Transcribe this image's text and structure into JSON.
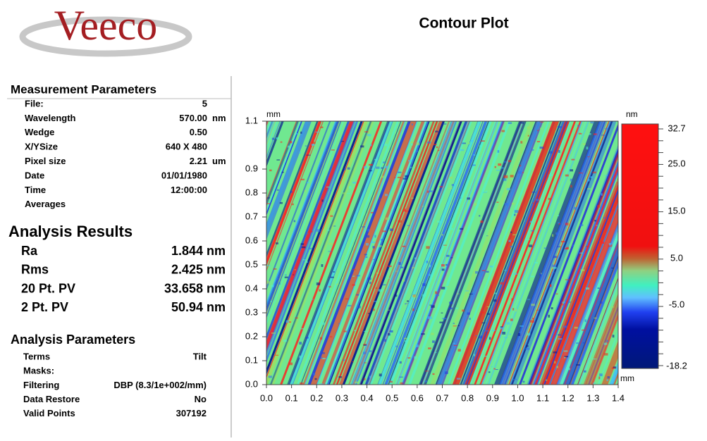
{
  "logo": "Veeco",
  "title": "Contour Plot",
  "measurement_parameters": {
    "title": "Measurement Parameters",
    "rows": [
      [
        "File:",
        "5",
        ""
      ],
      [
        "Wavelength",
        "570.00",
        "nm"
      ],
      [
        "Wedge",
        "0.50",
        ""
      ],
      [
        "X/YSize",
        "640 X 480",
        ""
      ],
      [
        "Pixel size",
        "2.21",
        "um"
      ],
      [
        "Date",
        "01/01/1980",
        ""
      ],
      [
        "Time",
        "12:00:00",
        ""
      ],
      [
        "Averages",
        "",
        ""
      ]
    ]
  },
  "analysis_results": {
    "title": "Analysis Results",
    "rows": [
      [
        "Ra",
        "1.844 nm"
      ],
      [
        "Rms",
        "2.425 nm"
      ],
      [
        "20 Pt. PV",
        "33.658 nm"
      ],
      [
        "2 Pt. PV",
        "50.94 nm"
      ]
    ]
  },
  "analysis_parameters": {
    "title": "Analysis Parameters",
    "rows": [
      [
        "Terms",
        "Tilt"
      ],
      [
        "Masks:",
        ""
      ],
      [
        "Filtering",
        "DBP (8.3/1e+002/mm)"
      ],
      [
        "Data Restore",
        "No"
      ],
      [
        "Valid Points",
        "307192"
      ]
    ]
  },
  "plot": {
    "x_unit": "mm",
    "y_unit": "mm",
    "colorbar_unit": "nm",
    "xticks": [
      "0.0",
      "0.1",
      "0.2",
      "0.3",
      "0.4",
      "0.5",
      "0.6",
      "0.7",
      "0.8",
      "0.9",
      "1.0",
      "1.1",
      "1.2",
      "1.3",
      "1.4"
    ],
    "yticks": [
      "0.0",
      "0.1",
      "0.2",
      "0.3",
      "0.4",
      "0.5",
      "0.6",
      "0.7",
      "0.8",
      "0.9",
      "1.1"
    ],
    "colorbar_labels": [
      "32.7",
      "25.0",
      "15.0",
      "5.0",
      "-5.0",
      "-18.2"
    ]
  }
}
